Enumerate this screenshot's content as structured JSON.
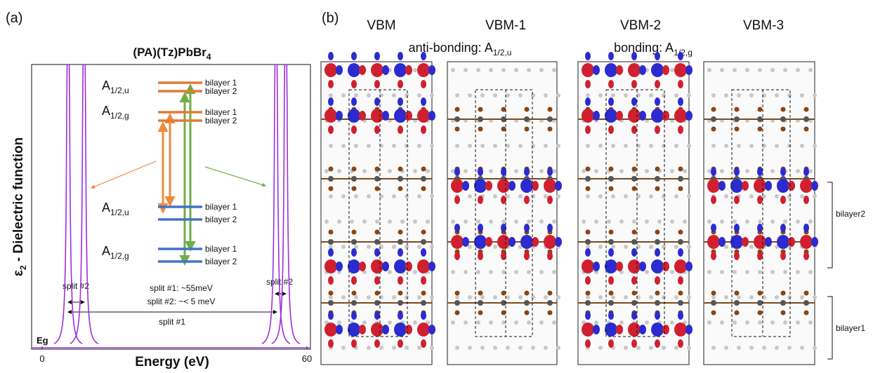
{
  "panel_a": {
    "label": "(a)",
    "title": {
      "text": "(PA)(Tz)PbBr",
      "sub": "4"
    },
    "y_axis_label": {
      "symbol": "ε",
      "sub": "2",
      "text": " - Dielectric function"
    },
    "x_axis_label": "Energy (eV)",
    "eg_label": "Eg",
    "spectrum": {
      "type": "line",
      "xlim": [
        0,
        60
      ],
      "xticks": [
        0,
        60
      ],
      "peaks": [
        5.9,
        9.5,
        53,
        55.2
      ],
      "color": "#9b30d9"
    },
    "levels": [
      {
        "state": {
          "base": "A",
          "sub": "1/2,u"
        },
        "color": "#e07b39",
        "bilayers": [
          "bilayer 1",
          "bilayer 2"
        ]
      },
      {
        "state": {
          "base": "A",
          "sub": "1/2,g"
        },
        "color": "#e07b39",
        "bilayers": [
          "bilayer 1",
          "bilayer 2"
        ]
      },
      {
        "state": {
          "base": "A",
          "sub": "1/2,u"
        },
        "color": "#4472c4",
        "bilayers": [
          "bilayer 1",
          "bilayer 2"
        ]
      },
      {
        "state": {
          "base": "A",
          "sub": "1/2,g"
        },
        "color": "#4472c4",
        "bilayers": [
          "bilayer 1",
          "bilayer 2"
        ]
      }
    ],
    "split_left": "split #2",
    "split_right": "split #2",
    "notes": [
      "split #1: ~55meV",
      "split #2: ~< 5 meV"
    ],
    "split_1": "split #1"
  },
  "panel_b": {
    "label": "(b)",
    "columns": [
      "VBM",
      "VBM-1",
      "VBM-2",
      "VBM-3"
    ],
    "groups": [
      {
        "text": "anti-bonding: ",
        "base": "A",
        "sub": "1/2,u"
      },
      {
        "text": "bonding: ",
        "base": "A",
        "sub": "1/2,g"
      }
    ],
    "brackets": [
      "bilayer2",
      "bilayer1"
    ]
  }
}
